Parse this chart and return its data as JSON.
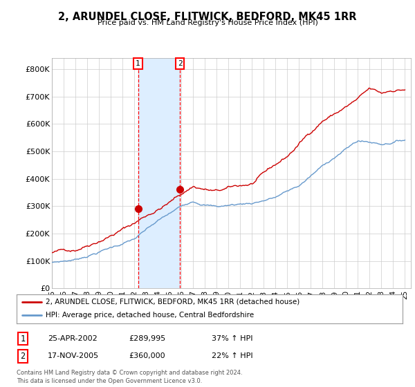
{
  "title": "2, ARUNDEL CLOSE, FLITWICK, BEDFORD, MK45 1RR",
  "subtitle": "Price paid vs. HM Land Registry's House Price Index (HPI)",
  "ylabel_ticks": [
    "£0",
    "£100K",
    "£200K",
    "£300K",
    "£400K",
    "£500K",
    "£600K",
    "£700K",
    "£800K"
  ],
  "ytick_values": [
    0,
    100000,
    200000,
    300000,
    400000,
    500000,
    600000,
    700000,
    800000
  ],
  "ylim": [
    0,
    840000
  ],
  "xlim_start": 1995.0,
  "xlim_end": 2025.5,
  "background_color": "#ffffff",
  "plot_bg_color": "#ffffff",
  "grid_color": "#cccccc",
  "sale1": {
    "date_num": 2002.32,
    "price": 289995,
    "label": "1",
    "date_str": "25-APR-2002",
    "price_str": "£289,995",
    "pct": "37% ↑ HPI"
  },
  "sale2": {
    "date_num": 2005.88,
    "price": 360000,
    "label": "2",
    "date_str": "17-NOV-2005",
    "price_str": "£360,000",
    "pct": "22% ↑ HPI"
  },
  "legend_line1": "2, ARUNDEL CLOSE, FLITWICK, BEDFORD, MK45 1RR (detached house)",
  "legend_line2": "HPI: Average price, detached house, Central Bedfordshire",
  "footer": "Contains HM Land Registry data © Crown copyright and database right 2024.\nThis data is licensed under the Open Government Licence v3.0.",
  "xtick_years": [
    1995,
    1996,
    1997,
    1998,
    1999,
    2000,
    2001,
    2002,
    2003,
    2004,
    2005,
    2006,
    2007,
    2008,
    2009,
    2010,
    2011,
    2012,
    2013,
    2014,
    2015,
    2016,
    2017,
    2018,
    2019,
    2020,
    2021,
    2022,
    2023,
    2024,
    2025
  ],
  "hpi_color": "#6699cc",
  "price_color": "#cc0000",
  "sale_marker_color": "#cc0000",
  "shade_color": "#ddeeff"
}
